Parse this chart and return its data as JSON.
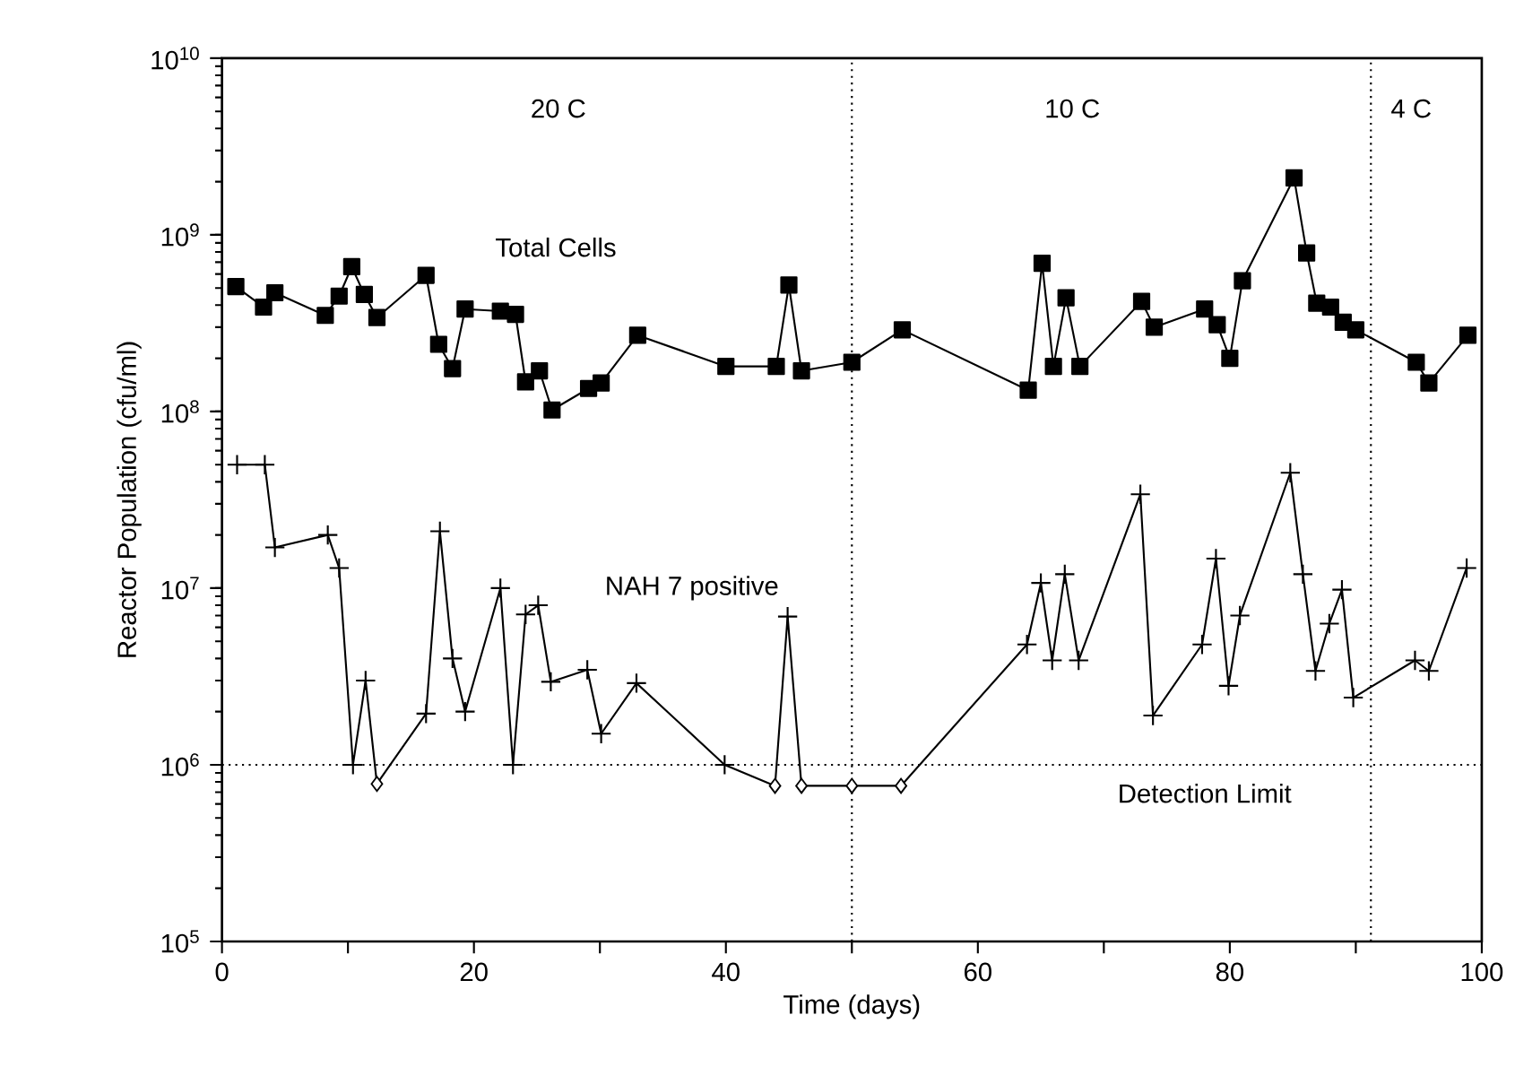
{
  "chart_data": {
    "type": "line",
    "xlabel": "Time (days)",
    "ylabel": "Reactor Population (cfu/ml)",
    "xlim": [
      0,
      100
    ],
    "xticks": [
      0,
      {
        "value": 10,
        "label": null
      },
      20,
      {
        "value": 30,
        "label": null
      },
      40,
      {
        "value": 50,
        "label": null
      },
      60,
      {
        "value": 70,
        "label": null
      },
      80,
      {
        "value": 90,
        "label": null
      },
      100
    ],
    "ylim": [
      100000,
      10000000000
    ],
    "yticks": [
      {
        "value": 100000,
        "label": "10$^{5}$"
      },
      {
        "value": 1000000,
        "label": "10$^{6}$"
      },
      {
        "value": 10000000,
        "label": "10$^{7}$"
      },
      {
        "value": 100000000,
        "label": "10$^{8}$"
      },
      {
        "value": 1000000000,
        "label": "10$^{9}$"
      },
      {
        "value": 10000000000,
        "label": "10$^{10}$"
      }
    ],
    "log": "y",
    "grid": false,
    "legend": false,
    "series": [
      {
        "name": "Total Cells",
        "color": "#000000",
        "marker": "square",
        "x": [
          1.1,
          3.3,
          4.2,
          8.2,
          9.3,
          10.3,
          11.3,
          12.3,
          16.2,
          17.2,
          18.3,
          19.3,
          22.1,
          23.3,
          24.1,
          25.2,
          26.2,
          29.1,
          30.1,
          33.0,
          40.0,
          44.0,
          45.0,
          46.0,
          50.0,
          54.0,
          64.0,
          65.1,
          66.0,
          67.0,
          68.1,
          73.0,
          74.0,
          78.0,
          79.0,
          80.0,
          81.0,
          85.1,
          86.1,
          86.9,
          88.0,
          89.0,
          90.0,
          94.8,
          95.8,
          98.9
        ],
        "values": [
          510000000.0,
          390000000.0,
          470000000.0,
          350000000.0,
          450000000.0,
          660000000.0,
          460000000.0,
          340000000.0,
          590000000.0,
          240000000.0,
          175000000.0,
          380000000.0,
          370000000.0,
          355000000.0,
          147000000.0,
          170000000.0,
          102000000.0,
          135000000.0,
          145000000.0,
          270000000.0,
          180000000.0,
          180000000.0,
          520000000.0,
          170000000.0,
          190000000.0,
          290000000.0,
          132000000.0,
          690000000.0,
          180000000.0,
          440000000.0,
          180000000.0,
          420000000.0,
          300000000.0,
          380000000.0,
          310000000.0,
          200000000.0,
          550000000.0,
          2100000000.0,
          790000000.0,
          410000000.0,
          390000000.0,
          320000000.0,
          290000000.0,
          190000000.0,
          145000000.0,
          270000000.0
        ]
      },
      {
        "name": "NAH 7 positive",
        "color": "#000000",
        "marker": "none",
        "x": [
          1.2,
          3.4,
          4.2,
          8.4,
          9.3,
          10.4,
          11.4,
          12.3,
          16.2,
          17.3,
          18.3,
          19.3,
          22.1,
          23.1,
          24.1,
          25.1,
          26.1,
          29.0,
          30.1,
          32.9,
          39.9,
          43.9,
          44.9,
          46.0,
          50.0,
          53.9,
          63.9,
          65.0,
          65.9,
          66.9,
          68.0,
          72.9,
          73.9,
          77.8,
          78.9,
          79.9,
          80.8,
          84.8,
          85.8,
          86.8,
          87.9,
          88.9,
          89.8,
          94.7,
          95.8,
          98.8
        ],
        "values": [
          50000000.0,
          50000000.0,
          17000000.0,
          20000000.0,
          13000000.0,
          1000000.0,
          3000000.0,
          780000.0,
          1950000.0,
          21000000.0,
          4000000.0,
          2000000.0,
          10000000.0,
          1000000.0,
          7100000.0,
          8000000.0,
          2950000.0,
          3450000.0,
          1500000.0,
          2900000.0,
          1000000.0,
          760000.0,
          6900000.0,
          760000.0,
          760000.0,
          760000.0,
          4800000.0,
          10700000.0,
          3900000.0,
          12000000.0,
          3900000.0,
          34000000.0,
          1900000.0,
          4800000.0,
          14700000.0,
          2800000.0,
          7000000.0,
          45000000.0,
          12000000.0,
          3400000.0,
          6300000.0,
          9800000.0,
          2400000.0,
          3900000.0,
          3400000.0,
          13000000.0
        ]
      },
      {
        "type": "scatter",
        "color": "#000000",
        "marker": "cross",
        "x": [
          1.2,
          3.4,
          4.2,
          8.4,
          9.3,
          10.4,
          11.4,
          16.2,
          17.3,
          18.3,
          19.3,
          22.1,
          23.1,
          24.1,
          25.1,
          26.1,
          29.0,
          30.1,
          32.9,
          39.9,
          44.9,
          63.9,
          65.0,
          65.9,
          66.9,
          68.0,
          72.9,
          73.9,
          77.8,
          78.9,
          79.9,
          80.8,
          84.8,
          85.8,
          86.8,
          87.9,
          88.9,
          89.8,
          94.7,
          95.8,
          98.8
        ],
        "values": [
          50000000.0,
          50000000.0,
          17000000.0,
          20000000.0,
          13000000.0,
          1000000.0,
          3000000.0,
          1950000.0,
          21000000.0,
          4000000.0,
          2000000.0,
          10000000.0,
          1000000.0,
          7100000.0,
          8000000.0,
          2950000.0,
          3450000.0,
          1500000.0,
          2900000.0,
          1000000.0,
          6900000.0,
          4800000.0,
          10700000.0,
          3900000.0,
          12000000.0,
          3900000.0,
          34000000.0,
          1900000.0,
          4800000.0,
          14700000.0,
          2800000.0,
          7000000.0,
          45000000.0,
          12000000.0,
          3400000.0,
          6300000.0,
          9800000.0,
          2400000.0,
          3900000.0,
          3400000.0,
          13000000.0
        ]
      },
      {
        "type": "scatter",
        "color": "#000000",
        "marker": "diamond",
        "x": [
          12.3,
          43.9,
          46.0,
          50.0,
          53.9
        ],
        "values": [
          780000.0,
          760000.0,
          760000.0,
          760000.0,
          760000.0
        ]
      }
    ],
    "ref_lines": [
      {
        "axis": "y",
        "value": 1000000,
        "label": "Detection Limit",
        "line_style": "dotted"
      },
      {
        "axis": "x",
        "value": 50,
        "line_style": "dotted"
      },
      {
        "axis": "x",
        "value": 91.2,
        "line_style": "dotted"
      }
    ],
    "annotations": [
      "20 C",
      "10 C",
      "4 C"
    ]
  }
}
